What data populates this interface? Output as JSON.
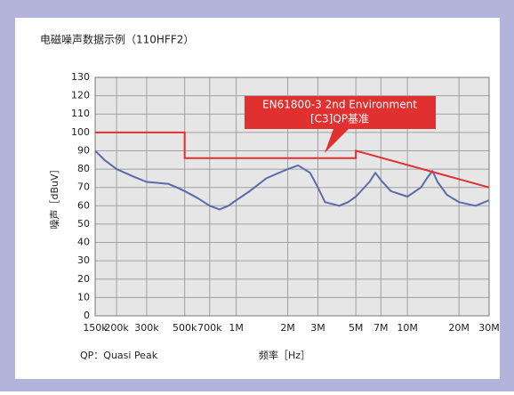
{
  "chart_data": {
    "type": "line",
    "title": "电磁噪声数据示例（110HFF2）",
    "ylabel": "噪声［dBuV］",
    "xlabel": "频率［Hz］",
    "note": "QP：Quasi Peak",
    "xscale": "log",
    "grid": true,
    "xlim": [
      150000,
      30000000
    ],
    "ylim": [
      0,
      130
    ],
    "xticks": [
      {
        "value": 150000,
        "label": "150k"
      },
      {
        "value": 200000,
        "label": "200k"
      },
      {
        "value": 300000,
        "label": "300k"
      },
      {
        "value": 500000,
        "label": "500k"
      },
      {
        "value": 700000,
        "label": "700k"
      },
      {
        "value": 1000000,
        "label": "1M"
      },
      {
        "value": 2000000,
        "label": "2M"
      },
      {
        "value": 3000000,
        "label": "3M"
      },
      {
        "value": 5000000,
        "label": "5M"
      },
      {
        "value": 7000000,
        "label": "7M"
      },
      {
        "value": 10000000,
        "label": "10M"
      },
      {
        "value": 20000000,
        "label": "20M"
      },
      {
        "value": 30000000,
        "label": "30M"
      }
    ],
    "yticks": [
      0,
      10,
      20,
      30,
      40,
      50,
      60,
      70,
      80,
      90,
      100,
      110,
      120,
      130
    ],
    "series": [
      {
        "color": "#5a6aaa",
        "x": [
          150000,
          170000,
          200000,
          250000,
          300000,
          400000,
          450000,
          500000,
          600000,
          700000,
          800000,
          900000,
          1000000,
          1200000,
          1500000,
          2000000,
          2300000,
          2700000,
          3000000,
          3300000,
          4000000,
          4500000,
          5000000,
          6000000,
          6500000,
          7000000,
          8000000,
          10000000,
          12000000,
          13000000,
          14000000,
          15000000,
          17000000,
          20000000,
          25000000,
          30000000
        ],
        "values": [
          90,
          85,
          80,
          76,
          73,
          72,
          70,
          68,
          64,
          60,
          58,
          60,
          63,
          68,
          75,
          80,
          82,
          78,
          70,
          62,
          60,
          62,
          65,
          73,
          78,
          74,
          68,
          65,
          70,
          75,
          79,
          73,
          66,
          62,
          60,
          63
        ]
      }
    ],
    "limit": {
      "color": "#e03030",
      "x": [
        150000,
        500000,
        500000,
        5000000,
        5000000,
        30000000
      ],
      "values": [
        100,
        100,
        86,
        86,
        90,
        70
      ]
    },
    "annotation": [
      "EN61800-3 2nd Environment",
      "[C3]QP基准"
    ]
  }
}
